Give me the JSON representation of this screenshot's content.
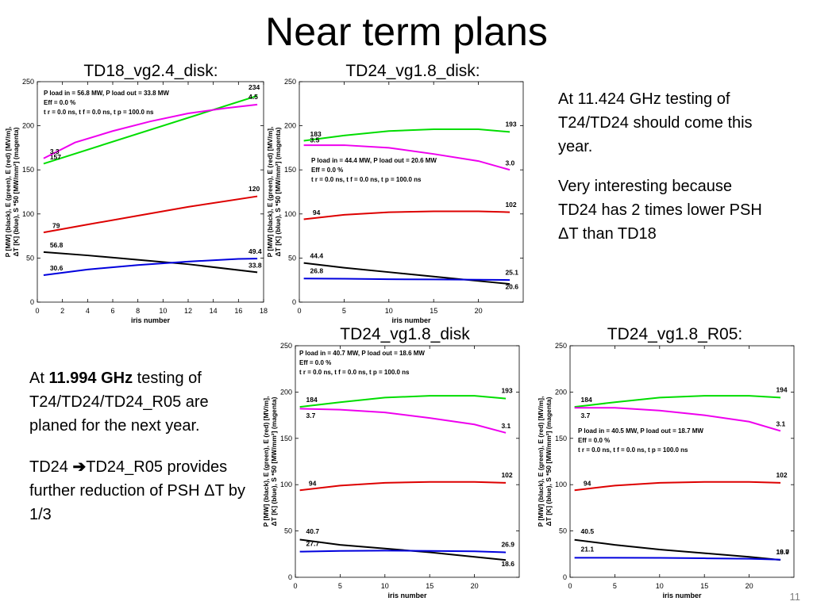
{
  "slide": {
    "title": "Near term plans",
    "page_number": "11"
  },
  "notes": {
    "top_right_1": "At 11.424 GHz testing of T24/TD24 should come this year.",
    "top_right_2": "Very interesting because TD24 has 2 times lower PSH ΔT than TD18",
    "bottom_left_1_pre": "At ",
    "bottom_left_1_bold": "11.994 GHz",
    "bottom_left_1_post": " testing of T24/TD24/TD24_R05 are planed for the next year.",
    "bottom_left_2_a": "TD24 ",
    "bottom_left_2_arrow": "➔",
    "bottom_left_2_b": "TD24_R05 provides further reduction of PSH ΔT by 1/3"
  },
  "colors": {
    "green": "#00dd00",
    "magenta": "#ee00ee",
    "red": "#dd0000",
    "black": "#000000",
    "blue": "#0000dd"
  },
  "chart_data": [
    {
      "type": "line",
      "title": "TD18_vg2.4_disk:",
      "xlabel": "iris number",
      "ylabel_lines": [
        "P [MW] (black), E  (green), E  (red) [MV/m],",
        "ΔT [K] (blue), S *50 [MW/mm²] (magenta)"
      ],
      "xlim": [
        0,
        18
      ],
      "ylim": [
        0,
        250
      ],
      "xticks": [
        0,
        2,
        4,
        6,
        8,
        10,
        12,
        14,
        16,
        18
      ],
      "yticks": [
        0,
        50,
        100,
        150,
        200,
        250
      ],
      "info_lines": [
        "P load in = 56.8 MW, P load out = 33.8 MW",
        "Eff = 0.0 %",
        "t r = 0.0 ns, t f = 0.0 ns, t p = 100.0 ns"
      ],
      "series": [
        {
          "color": "green",
          "x": [
            0.5,
            17.5
          ],
          "y": [
            157,
            234
          ],
          "labels": [
            {
              "text": "157",
              "x": 1.0,
              "y": 162
            },
            {
              "text": "234",
              "x": 16.8,
              "y": 241
            }
          ]
        },
        {
          "color": "magenta",
          "x": [
            0.5,
            3,
            6,
            9,
            12,
            15,
            17.5
          ],
          "y": [
            163,
            181,
            194,
            205,
            214,
            220,
            224
          ],
          "labels": [
            {
              "text": "3.3",
              "x": 1.0,
              "y": 168
            },
            {
              "text": "4.5",
              "x": 16.8,
              "y": 230
            }
          ]
        },
        {
          "color": "red",
          "x": [
            0.5,
            4,
            8,
            12,
            17.5
          ],
          "y": [
            79,
            88,
            98,
            108,
            120
          ],
          "labels": [
            {
              "text": "79",
              "x": 1.2,
              "y": 84
            },
            {
              "text": "120",
              "x": 16.8,
              "y": 126
            }
          ]
        },
        {
          "color": "black",
          "x": [
            0.5,
            4,
            8,
            12,
            17.5
          ],
          "y": [
            56.8,
            53,
            48,
            43,
            33.8
          ],
          "labels": [
            {
              "text": "56.8",
              "x": 1.0,
              "y": 62
            },
            {
              "text": "33.8",
              "x": 16.8,
              "y": 39
            }
          ]
        },
        {
          "color": "blue",
          "x": [
            0.5,
            4,
            8,
            12,
            16,
            17.5
          ],
          "y": [
            30.6,
            37,
            42,
            46,
            49,
            49.4
          ],
          "labels": [
            {
              "text": "30.6",
              "x": 1.0,
              "y": 36
            },
            {
              "text": "49.4",
              "x": 16.8,
              "y": 55
            }
          ]
        }
      ]
    },
    {
      "type": "line",
      "title": "TD24_vg1.8_disk:",
      "xlabel": "iris number",
      "ylabel_lines": [
        "P [MW] (black), E  (green), E  (red) [MV/m],",
        "ΔT [K] (blue), S *50 [MW/mm²] (magenta)"
      ],
      "xlim": [
        0,
        25
      ],
      "ylim": [
        0,
        250
      ],
      "xticks": [
        0,
        5,
        10,
        15,
        20
      ],
      "yticks": [
        0,
        50,
        100,
        150,
        200,
        250
      ],
      "info_lines": [
        "P load in = 44.4 MW, P load out = 20.6 MW",
        "Eff = 0.0 %",
        "t r = 0.0 ns, t f = 0.0 ns, t p = 100.0 ns"
      ],
      "series": [
        {
          "color": "green",
          "x": [
            0.5,
            5,
            10,
            15,
            20,
            23.5
          ],
          "y": [
            183,
            189,
            194,
            196,
            196,
            193
          ],
          "labels": [
            {
              "text": "183",
              "x": 1.2,
              "y": 188
            },
            {
              "text": "193",
              "x": 23.0,
              "y": 199
            }
          ]
        },
        {
          "color": "magenta",
          "x": [
            0.5,
            5,
            10,
            15,
            20,
            23.5
          ],
          "y": [
            178,
            178,
            175,
            168,
            160,
            150
          ],
          "labels": [
            {
              "text": "3.5",
              "x": 1.2,
              "y": 181
            },
            {
              "text": "3.0",
              "x": 23.0,
              "y": 155
            }
          ]
        },
        {
          "color": "red",
          "x": [
            0.5,
            5,
            10,
            15,
            20,
            23.5
          ],
          "y": [
            94,
            99,
            102,
            103,
            103,
            102
          ],
          "labels": [
            {
              "text": "94",
              "x": 1.5,
              "y": 99
            },
            {
              "text": "102",
              "x": 23.0,
              "y": 108
            }
          ]
        },
        {
          "color": "black",
          "x": [
            0.5,
            5,
            10,
            15,
            20,
            23.5
          ],
          "y": [
            44.4,
            39,
            34,
            29,
            24,
            20.6
          ],
          "labels": [
            {
              "text": "44.4",
              "x": 1.2,
              "y": 50
            },
            {
              "text": "20.6",
              "x": 23.0,
              "y": 15
            }
          ]
        },
        {
          "color": "blue",
          "x": [
            0.5,
            5,
            10,
            15,
            20,
            23.5
          ],
          "y": [
            26.8,
            26.5,
            26,
            25.7,
            25.4,
            25.1
          ],
          "labels": [
            {
              "text": "26.8",
              "x": 1.2,
              "y": 33
            },
            {
              "text": "25.1",
              "x": 23.0,
              "y": 31
            }
          ]
        }
      ]
    },
    {
      "type": "line",
      "title": "TD24_vg1.8_disk",
      "xlabel": "iris number",
      "ylabel_lines": [
        "P [MW] (black), E  (green), E  (red) [MV/m],",
        "ΔT [K] (blue), S *50 [MW/mm²] (magenta)"
      ],
      "xlim": [
        0,
        25
      ],
      "ylim": [
        0,
        250
      ],
      "xticks": [
        0,
        5,
        10,
        15,
        20
      ],
      "yticks": [
        0,
        50,
        100,
        150,
        200,
        250
      ],
      "info_lines": [
        "P load in = 40.7 MW, P load out = 18.6 MW",
        "Eff = 0.0 %",
        "t r = 0.0 ns, t f = 0.0 ns, t p = 100.0 ns"
      ],
      "series": [
        {
          "color": "green",
          "x": [
            0.5,
            5,
            10,
            15,
            20,
            23.5
          ],
          "y": [
            184,
            189,
            194,
            196,
            196,
            193
          ],
          "labels": [
            {
              "text": "184",
              "x": 1.2,
              "y": 189
            },
            {
              "text": "193",
              "x": 23.0,
              "y": 199
            }
          ]
        },
        {
          "color": "magenta",
          "x": [
            0.5,
            5,
            10,
            15,
            20,
            23.5
          ],
          "y": [
            182,
            181,
            178,
            172,
            165,
            156
          ],
          "labels": [
            {
              "text": "3.7",
              "x": 1.2,
              "y": 172
            },
            {
              "text": "3.1",
              "x": 23.0,
              "y": 161
            }
          ]
        },
        {
          "color": "red",
          "x": [
            0.5,
            5,
            10,
            15,
            20,
            23.5
          ],
          "y": [
            94,
            99,
            102,
            103,
            103,
            102
          ],
          "labels": [
            {
              "text": "94",
              "x": 1.5,
              "y": 99
            },
            {
              "text": "102",
              "x": 23.0,
              "y": 108
            }
          ]
        },
        {
          "color": "black",
          "x": [
            0.5,
            5,
            10,
            15,
            20,
            23.5
          ],
          "y": [
            40.7,
            35,
            31,
            27,
            22,
            18.6
          ],
          "labels": [
            {
              "text": "40.7",
              "x": 1.2,
              "y": 47
            },
            {
              "text": "18.6",
              "x": 23.0,
              "y": 12
            }
          ]
        },
        {
          "color": "blue",
          "x": [
            0.5,
            5,
            10,
            15,
            20,
            23.5
          ],
          "y": [
            27.7,
            28.5,
            28.8,
            28.5,
            28,
            26.9
          ],
          "labels": [
            {
              "text": "27.7",
              "x": 1.2,
              "y": 34
            },
            {
              "text": "26.9",
              "x": 23.0,
              "y": 33
            }
          ]
        }
      ]
    },
    {
      "type": "line",
      "title": "TD24_vg1.8_R05:",
      "xlabel": "iris number",
      "ylabel_lines": [
        "P [MW] (black), E  (green), E  (red) [MV/m],",
        "ΔT [K] (blue), S *50 [MW/mm²] (magenta)"
      ],
      "xlim": [
        0,
        25
      ],
      "ylim": [
        0,
        250
      ],
      "xticks": [
        0,
        5,
        10,
        15,
        20
      ],
      "yticks": [
        0,
        50,
        100,
        150,
        200,
        250
      ],
      "info_lines": [
        "P load in = 40.5 MW, P load out = 18.7 MW",
        "Eff = 0.0 %",
        "t r = 0.0 ns, t f = 0.0 ns, t p = 100.0 ns"
      ],
      "series": [
        {
          "color": "green",
          "x": [
            0.5,
            5,
            10,
            15,
            20,
            23.5
          ],
          "y": [
            184,
            189,
            194,
            196,
            196,
            194
          ],
          "labels": [
            {
              "text": "184",
              "x": 1.2,
              "y": 189
            },
            {
              "text": "194",
              "x": 23.0,
              "y": 200
            }
          ]
        },
        {
          "color": "magenta",
          "x": [
            0.5,
            5,
            10,
            15,
            20,
            23.5
          ],
          "y": [
            183,
            183,
            180,
            175,
            168,
            158
          ],
          "labels": [
            {
              "text": "3.7",
              "x": 1.2,
              "y": 172
            },
            {
              "text": "3.1",
              "x": 23.0,
              "y": 163
            }
          ]
        },
        {
          "color": "red",
          "x": [
            0.5,
            5,
            10,
            15,
            20,
            23.5
          ],
          "y": [
            94,
            99,
            102,
            103,
            103,
            102
          ],
          "labels": [
            {
              "text": "94",
              "x": 1.5,
              "y": 99
            },
            {
              "text": "102",
              "x": 23.0,
              "y": 108
            }
          ]
        },
        {
          "color": "black",
          "x": [
            0.5,
            5,
            10,
            15,
            20,
            23.5
          ],
          "y": [
            40.5,
            35,
            30,
            26,
            22,
            18.7
          ],
          "labels": [
            {
              "text": "40.5",
              "x": 1.2,
              "y": 47
            },
            {
              "text": "18.7",
              "x": 23.0,
              "y": 25
            }
          ]
        },
        {
          "color": "blue",
          "x": [
            0.5,
            5,
            10,
            15,
            20,
            23.5
          ],
          "y": [
            21.1,
            21.1,
            21,
            20.5,
            20,
            19
          ],
          "labels": [
            {
              "text": "21.1",
              "x": 1.2,
              "y": 28
            },
            {
              "text": "19.0",
              "x": 23.0,
              "y": 25
            }
          ]
        }
      ]
    }
  ]
}
